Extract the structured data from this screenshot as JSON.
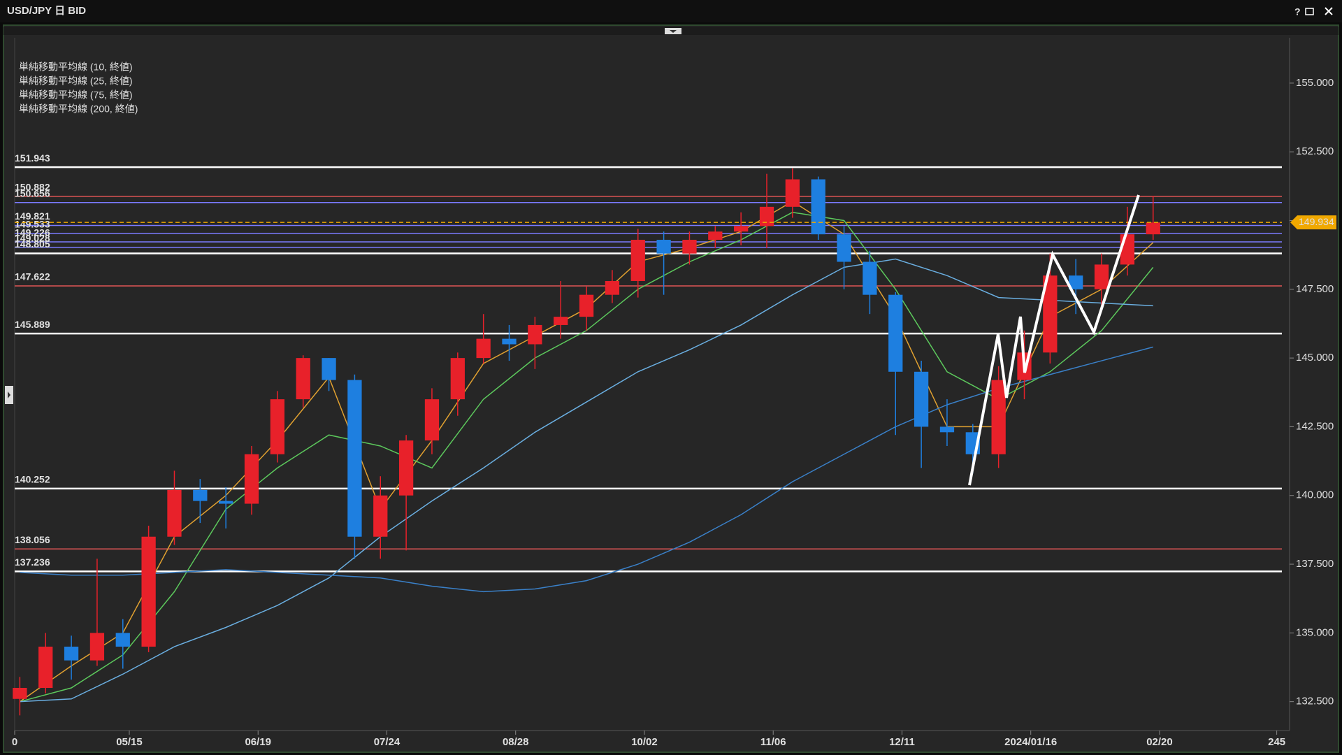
{
  "window": {
    "title": "USD/JPY 日 BID",
    "help": "?"
  },
  "chart_data": {
    "type": "candlestick",
    "xlim": [
      0,
      246
    ],
    "xticks": [
      0,
      {
        "value": 22.25,
        "label": "05/15"
      },
      {
        "value": 47.25,
        "label": "06/19"
      },
      {
        "value": 72.25,
        "label": "07/24"
      },
      {
        "value": 97.25,
        "label": "08/28"
      },
      {
        "value": 122.25,
        "label": "10/02"
      },
      {
        "value": 147.25,
        "label": "11/06"
      },
      {
        "value": 172.25,
        "label": "12/11"
      },
      {
        "value": 197.25,
        "label": "2024/01/16"
      },
      {
        "value": 222.25,
        "label": "02/20"
      },
      245
    ],
    "ylim": [
      131.5,
      156.65
    ],
    "yticks": [
      {
        "value": 132.5,
        "label": "132.500"
      },
      {
        "value": 135,
        "label": "135.000"
      },
      {
        "value": 137.5,
        "label": "137.500"
      },
      {
        "value": 140,
        "label": "140.000"
      },
      {
        "value": 142.5,
        "label": "142.500"
      },
      {
        "value": 145,
        "label": "145.000"
      },
      {
        "value": 147.5,
        "label": "147.500"
      },
      {
        "value": 150,
        "label": "150.000"
      },
      {
        "value": 152.5,
        "label": "152.500"
      },
      {
        "value": 155,
        "label": "155.000"
      }
    ],
    "up_color": "#e8212a",
    "down_color": "#1e7fe0",
    "x": [
      1,
      6,
      11,
      16,
      21,
      26,
      31,
      36,
      41,
      46,
      51,
      56,
      61,
      66,
      71,
      76,
      81,
      86,
      91,
      96,
      101,
      106,
      111,
      116,
      121,
      126,
      131,
      136,
      141,
      146,
      151,
      156,
      161,
      166,
      171,
      176,
      181,
      186,
      191,
      196,
      201,
      206,
      211,
      216,
      221
    ],
    "open": [
      132.6,
      133.0,
      134.5,
      134.0,
      135.0,
      134.5,
      138.5,
      140.2,
      139.8,
      139.7,
      141.5,
      143.5,
      145.0,
      144.2,
      138.5,
      140.0,
      142.0,
      143.5,
      145.0,
      145.7,
      145.5,
      146.2,
      146.5,
      147.3,
      147.8,
      149.3,
      148.8,
      149.3,
      149.6,
      149.8,
      150.5,
      151.5,
      149.5,
      148.5,
      147.3,
      144.5,
      142.5,
      142.3,
      141.5,
      144.2,
      145.2,
      148.0,
      147.5,
      148.4,
      149.5
    ],
    "high": [
      133.4,
      135.0,
      134.9,
      137.7,
      135.5,
      138.9,
      140.9,
      140.6,
      140.3,
      141.8,
      143.8,
      145.1,
      145.0,
      144.4,
      140.7,
      142.2,
      143.9,
      145.2,
      146.6,
      146.2,
      146.5,
      147.8,
      147.6,
      148.2,
      149.7,
      149.6,
      149.6,
      149.8,
      150.3,
      151.7,
      151.9,
      151.6,
      149.8,
      148.9,
      147.4,
      144.9,
      143.5,
      142.6,
      144.7,
      146.0,
      148.8,
      148.6,
      148.8,
      150.5,
      150.9
    ],
    "low": [
      132.0,
      132.8,
      133.3,
      133.8,
      133.7,
      134.3,
      138.2,
      139.0,
      138.8,
      139.3,
      141.2,
      143.2,
      143.8,
      137.7,
      137.7,
      138.0,
      141.5,
      142.9,
      144.8,
      144.9,
      144.6,
      145.7,
      146.0,
      147.0,
      147.2,
      147.3,
      148.4,
      149.0,
      149.1,
      149.0,
      150.1,
      149.3,
      147.5,
      146.6,
      142.2,
      141.0,
      141.8,
      140.8,
      141.0,
      143.5,
      144.8,
      146.6,
      146.7,
      148.0,
      149.3
    ],
    "close": [
      133.0,
      134.5,
      134.0,
      135.0,
      134.5,
      138.5,
      140.2,
      139.8,
      139.7,
      141.5,
      143.5,
      145.0,
      144.2,
      138.5,
      140.0,
      142.0,
      143.5,
      145.0,
      145.7,
      145.5,
      146.2,
      146.5,
      147.3,
      147.8,
      149.3,
      148.8,
      149.3,
      149.6,
      149.8,
      150.5,
      151.5,
      149.5,
      148.5,
      147.3,
      144.5,
      142.5,
      142.3,
      141.5,
      144.2,
      145.2,
      148.0,
      147.5,
      148.4,
      149.5,
      149.93
    ],
    "series": [
      {
        "name": "単純移動平均線 (10, 終値)",
        "color": "#e0a030",
        "x": [
          1,
          11,
          21,
          31,
          41,
          51,
          61,
          71,
          81,
          91,
          101,
          111,
          121,
          131,
          141,
          151,
          161,
          171,
          181,
          191,
          201,
          211,
          221
        ],
        "values": [
          132.5,
          133.8,
          135.0,
          138.5,
          140.0,
          142.0,
          144.3,
          139.5,
          142.0,
          144.8,
          145.8,
          146.8,
          148.5,
          149.0,
          149.6,
          150.7,
          149.5,
          146.5,
          142.5,
          142.5,
          146.5,
          147.5,
          149.2
        ]
      },
      {
        "name": "単純移動平均線 (25, 終値)",
        "color": "#5cc85c",
        "x": [
          1,
          11,
          21,
          31,
          41,
          51,
          61,
          71,
          81,
          91,
          101,
          111,
          121,
          131,
          141,
          151,
          161,
          171,
          181,
          191,
          201,
          211,
          221
        ],
        "values": [
          132.5,
          133.0,
          134.2,
          136.5,
          139.5,
          141.0,
          142.2,
          141.8,
          141.0,
          143.5,
          145.0,
          146.0,
          147.5,
          148.5,
          149.3,
          150.3,
          150.0,
          147.5,
          144.5,
          143.5,
          144.5,
          146.0,
          148.3
        ]
      },
      {
        "name": "単純移動平均線 (75, 終値)",
        "color": "#6aaee0",
        "x": [
          1,
          11,
          21,
          31,
          41,
          51,
          61,
          71,
          81,
          91,
          101,
          111,
          121,
          131,
          141,
          151,
          161,
          171,
          181,
          191,
          201,
          211,
          221
        ],
        "values": [
          132.5,
          132.6,
          133.5,
          134.5,
          135.2,
          136.0,
          137.0,
          138.5,
          139.8,
          141.0,
          142.3,
          143.4,
          144.5,
          145.3,
          146.2,
          147.3,
          148.3,
          148.6,
          148.0,
          147.2,
          147.1,
          147.0,
          146.9
        ]
      },
      {
        "name": "単純移動平均線 (200, 終値)",
        "color": "#3a80c8",
        "x": [
          1,
          11,
          21,
          31,
          41,
          51,
          61,
          71,
          81,
          91,
          101,
          111,
          121,
          131,
          141,
          151,
          161,
          171,
          181,
          191,
          201,
          211,
          221
        ],
        "values": [
          137.2,
          137.1,
          137.1,
          137.2,
          137.3,
          137.2,
          137.1,
          137.0,
          136.7,
          136.5,
          136.6,
          136.9,
          137.5,
          138.3,
          139.3,
          140.5,
          141.5,
          142.5,
          143.3,
          143.9,
          144.4,
          144.9,
          145.4
        ]
      }
    ],
    "levels": [
      {
        "value": 151.943,
        "color": "#ffffff"
      },
      {
        "value": 150.882,
        "color": "#e05555"
      },
      {
        "value": 150.656,
        "color": "#7b7bff"
      },
      {
        "value": 149.821,
        "color": "#7b7bff"
      },
      {
        "value": 149.533,
        "color": "#7b7bff"
      },
      {
        "value": 149.226,
        "color": "#7b7bff"
      },
      {
        "value": 149.028,
        "color": "#7b7bff"
      },
      {
        "value": 148.805,
        "color": "#ffffff"
      },
      {
        "value": 147.622,
        "color": "#e05555"
      },
      {
        "value": 145.889,
        "color": "#ffffff"
      },
      {
        "value": 140.252,
        "color": "#ffffff"
      },
      {
        "value": 138.056,
        "color": "#e05555"
      },
      {
        "value": 137.236,
        "color": "#ffffff"
      }
    ],
    "last": {
      "value": 149.934,
      "color": "#f0a800"
    }
  }
}
